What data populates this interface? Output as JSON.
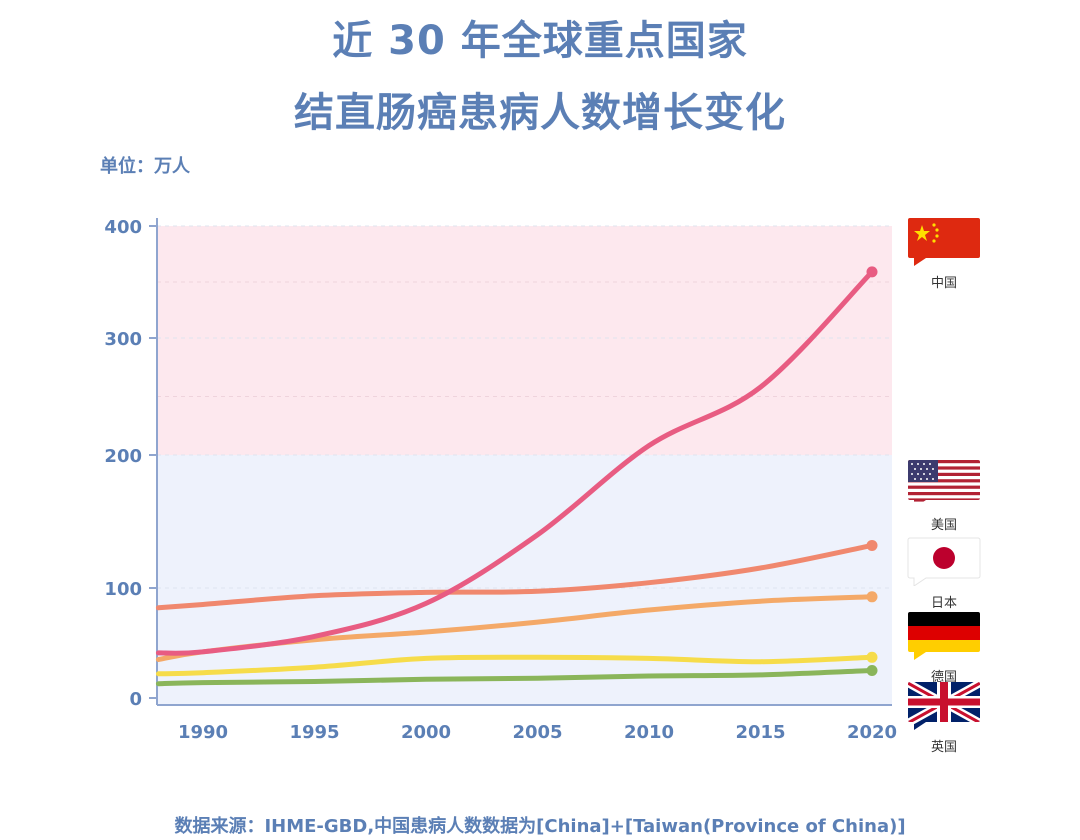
{
  "title_line1": "近 30 年全球重点国家",
  "title_line2": "结直肠癌患病人数增长变化",
  "unit_label": "单位：万人",
  "source_text": "数据来源：IHME-GBD,中国患病人数数据为[China]+[Taiwan(Province of China)]",
  "chart_data": {
    "type": "line",
    "x_ticks": [
      "1990",
      "1995",
      "2000",
      "2005",
      "2010",
      "2015",
      "2020"
    ],
    "y_ticks": [
      "0",
      "100",
      "200",
      "300",
      "400"
    ],
    "xlim": [
      1988,
      2020
    ],
    "ylim": [
      0,
      400
    ],
    "bands": [
      {
        "from": 0,
        "to": 200,
        "color": "#eef2fc"
      },
      {
        "from": 200,
        "to": 400,
        "color": "#fde8ee"
      }
    ],
    "series": [
      {
        "name": "中国",
        "color": "#e85c82",
        "x": [
          1988,
          1990,
          1995,
          2000,
          2005,
          2010,
          2015,
          2020
        ],
        "y": [
          41,
          42,
          56,
          86,
          140,
          208,
          258,
          359
        ]
      },
      {
        "name": "美国",
        "color": "#f0886e",
        "x": [
          1988,
          1990,
          1995,
          2000,
          2005,
          2010,
          2015,
          2020
        ],
        "y": [
          82,
          85,
          93,
          96,
          97,
          104,
          115,
          132
        ]
      },
      {
        "name": "日本",
        "color": "#f4a968",
        "x": [
          1988,
          1990,
          1995,
          2000,
          2005,
          2010,
          2015,
          2020
        ],
        "y": [
          35,
          42,
          53,
          60,
          69,
          80,
          88,
          92
        ]
      },
      {
        "name": "德国",
        "color": "#f6dc4a",
        "x": [
          1988,
          1990,
          1995,
          2000,
          2005,
          2010,
          2015,
          2020
        ],
        "y": [
          22,
          23,
          28,
          36,
          37,
          36,
          33,
          37
        ]
      },
      {
        "name": "英国",
        "color": "#8ab55a",
        "x": [
          1988,
          1990,
          1995,
          2000,
          2005,
          2010,
          2015,
          2020
        ],
        "y": [
          13,
          14,
          15,
          17,
          18,
          20,
          21,
          25
        ]
      }
    ]
  },
  "flags": [
    {
      "name": "中国",
      "label": "中国",
      "icon": "china-flag-icon",
      "colors": [
        "#de2910",
        "#ffde00"
      ]
    },
    {
      "name": "美国",
      "label": "美国",
      "icon": "usa-flag-icon",
      "colors": [
        "#b22234",
        "#ffffff",
        "#3c3b6e"
      ]
    },
    {
      "name": "日本",
      "label": "日本",
      "icon": "japan-flag-icon",
      "colors": [
        "#ffffff",
        "#bc002d"
      ]
    },
    {
      "name": "德国",
      "label": "德国",
      "icon": "germany-flag-icon",
      "colors": [
        "#000000",
        "#dd0000",
        "#ffce00"
      ]
    },
    {
      "name": "英国",
      "label": "英国",
      "icon": "uk-flag-icon",
      "colors": [
        "#012169",
        "#ffffff",
        "#c8102e"
      ]
    }
  ]
}
